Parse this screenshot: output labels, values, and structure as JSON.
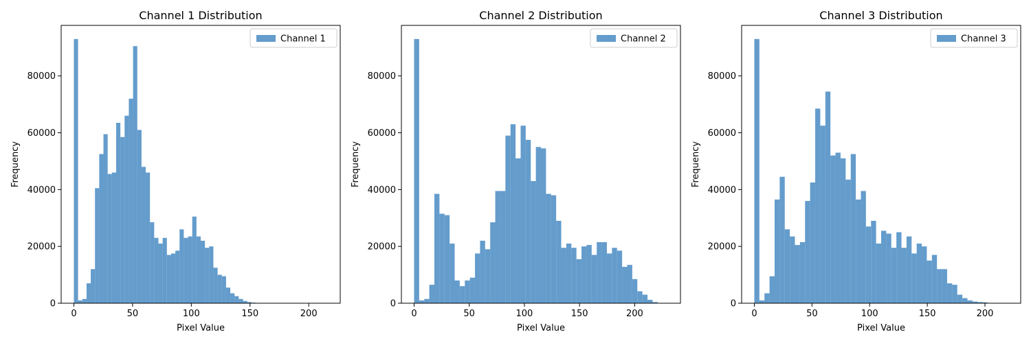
{
  "bar_color": "#4a8cc4",
  "bar_opacity": 0.86,
  "chart_data": [
    {
      "type": "bar",
      "title": "Channel 1 Distribution",
      "xlabel": "Pixel Value",
      "ylabel": "Frequency",
      "legend": "Channel 1",
      "legend_position": "top-right",
      "grid": false,
      "xlim": [
        -10.8,
        226.8
      ],
      "ylim": [
        0,
        97800
      ],
      "xticks": [
        0,
        50,
        100,
        150,
        200
      ],
      "yticks": [
        0,
        20000,
        40000,
        60000,
        80000
      ],
      "bin_start": 0,
      "bin_width": 3.6,
      "values": [
        93000,
        1000,
        1500,
        7000,
        12000,
        40500,
        52500,
        59500,
        45500,
        46000,
        63500,
        58500,
        66000,
        72000,
        90500,
        61000,
        48000,
        46000,
        28500,
        23000,
        21000,
        23000,
        17000,
        17500,
        18500,
        26000,
        23000,
        23500,
        30500,
        23500,
        22000,
        19500,
        20000,
        12500,
        10000,
        9500,
        5500,
        3500,
        2500,
        1500,
        800,
        400,
        200,
        100
      ]
    },
    {
      "type": "bar",
      "title": "Channel 2 Distribution",
      "xlabel": "Pixel Value",
      "ylabel": "Frequency",
      "legend": "Channel 2",
      "legend_position": "top-right",
      "grid": false,
      "xlim": [
        -11.5,
        241.5
      ],
      "ylim": [
        0,
        97800
      ],
      "xticks": [
        0,
        50,
        100,
        150,
        200
      ],
      "yticks": [
        0,
        20000,
        40000,
        60000,
        80000
      ],
      "bin_start": 0,
      "bin_width": 4.6,
      "values": [
        93000,
        1000,
        1500,
        6500,
        38500,
        31500,
        31000,
        21000,
        8000,
        6000,
        8000,
        9000,
        17500,
        22000,
        19000,
        28500,
        39500,
        39500,
        59000,
        63000,
        51000,
        62500,
        57500,
        43000,
        55000,
        54500,
        38500,
        38000,
        29000,
        19500,
        21000,
        19500,
        15500,
        20000,
        20500,
        17000,
        21500,
        21500,
        17500,
        19500,
        18500,
        12800,
        13500,
        8500,
        4200,
        3000,
        1200,
        400,
        100
      ]
    },
    {
      "type": "bar",
      "title": "Channel 3 Distribution",
      "xlabel": "Pixel Value",
      "ylabel": "Frequency",
      "legend": "Channel 3",
      "legend_position": "top-right",
      "grid": false,
      "xlim": [
        -11.0,
        231.0
      ],
      "ylim": [
        0,
        97800
      ],
      "xticks": [
        0,
        50,
        100,
        150,
        200
      ],
      "yticks": [
        0,
        20000,
        40000,
        60000,
        80000
      ],
      "bin_start": 0,
      "bin_width": 4.4,
      "values": [
        93000,
        1000,
        3500,
        9500,
        36500,
        44500,
        26000,
        23500,
        20500,
        21500,
        36000,
        42500,
        68500,
        62500,
        74500,
        52000,
        53000,
        51000,
        43500,
        52500,
        36500,
        39500,
        27000,
        29000,
        21000,
        25500,
        24500,
        19500,
        25000,
        19500,
        23500,
        17500,
        21000,
        20000,
        15000,
        17000,
        12000,
        12000,
        7000,
        6500,
        3000,
        1800,
        1000,
        600,
        400,
        300,
        100
      ]
    }
  ]
}
